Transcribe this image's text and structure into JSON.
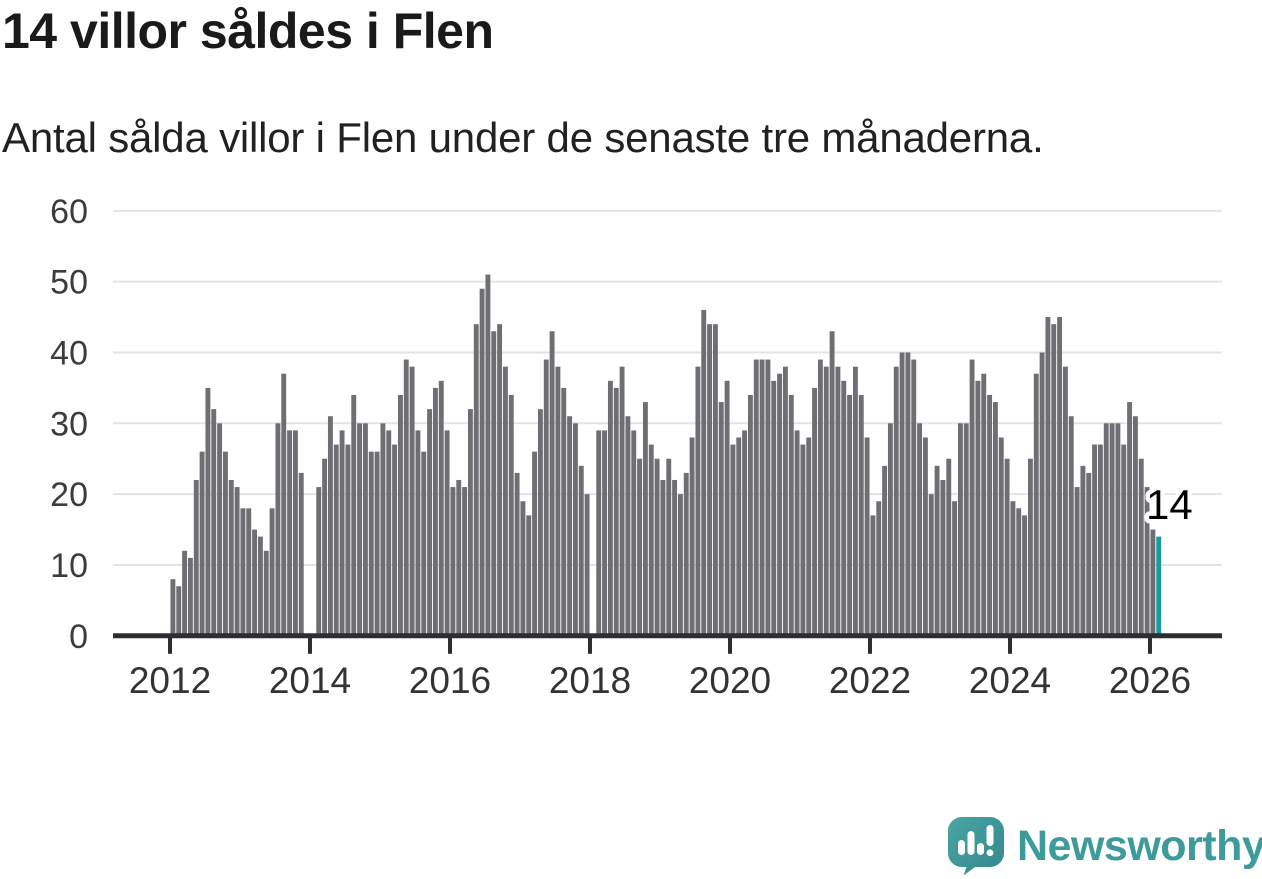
{
  "header": {
    "title": "14 villor såldes i Flen",
    "subtitle": "Antal sålda villor i Flen under de senaste tre månaderna."
  },
  "chart_data": {
    "type": "bar",
    "title": "14 villor såldes i Flen",
    "subtitle": "Antal sålda villor i Flen under de senaste tre månaderna.",
    "x_start": "2012-01",
    "frequency": "monthly",
    "ylim": [
      0,
      60
    ],
    "yticks": [
      0,
      10,
      20,
      30,
      40,
      50,
      60
    ],
    "xticks": [
      "2012",
      "2014",
      "2016",
      "2018",
      "2020",
      "2022",
      "2024",
      "2026"
    ],
    "grid": "horizontal",
    "legend": "none",
    "bar_color": "#6F6E73",
    "highlight_color": "#1A999F",
    "annotation": {
      "label": "14",
      "target": "last-bar"
    },
    "values_by_year": [
      {
        "year": 2012,
        "values": [
          8,
          7,
          12,
          11,
          22,
          26,
          35,
          32,
          30,
          26,
          22,
          21
        ]
      },
      {
        "year": 2013,
        "values": [
          18,
          18,
          15,
          14,
          12,
          18,
          30,
          37,
          29,
          29,
          23,
          null
        ]
      },
      {
        "year": 2014,
        "values": [
          null,
          21,
          25,
          31,
          27,
          29,
          27,
          34,
          30,
          30,
          26,
          26
        ]
      },
      {
        "year": 2015,
        "values": [
          30,
          29,
          27,
          34,
          39,
          38,
          29,
          26,
          32,
          35,
          36,
          29
        ]
      },
      {
        "year": 2016,
        "values": [
          21,
          22,
          21,
          32,
          44,
          49,
          51,
          43,
          44,
          38,
          34,
          23
        ]
      },
      {
        "year": 2017,
        "values": [
          19,
          17,
          26,
          32,
          39,
          43,
          38,
          35,
          31,
          30,
          24,
          20
        ]
      },
      {
        "year": 2018,
        "values": [
          null,
          29,
          29,
          36,
          35,
          38,
          31,
          29,
          25,
          33,
          27,
          25
        ]
      },
      {
        "year": 2019,
        "values": [
          22,
          25,
          22,
          20,
          23,
          28,
          38,
          46,
          44,
          44,
          33,
          36
        ]
      },
      {
        "year": 2020,
        "values": [
          27,
          28,
          29,
          34,
          39,
          39,
          39,
          36,
          37,
          38,
          34,
          29
        ]
      },
      {
        "year": 2021,
        "values": [
          27,
          28,
          35,
          39,
          38,
          43,
          38,
          36,
          34,
          38,
          34,
          28
        ]
      },
      {
        "year": 2022,
        "values": [
          17,
          19,
          24,
          30,
          38,
          40,
          40,
          39,
          30,
          28,
          20,
          24
        ]
      },
      {
        "year": 2023,
        "values": [
          22,
          25,
          19,
          30,
          30,
          39,
          36,
          37,
          34,
          33,
          28,
          25
        ]
      },
      {
        "year": 2024,
        "values": [
          19,
          18,
          17,
          25,
          37,
          40,
          45,
          44,
          45,
          38,
          31,
          21
        ]
      },
      {
        "year": 2025,
        "values": [
          24,
          23,
          27,
          27,
          30,
          30,
          30,
          27,
          33,
          31,
          25,
          21
        ]
      },
      {
        "year": 2026,
        "values": [
          15,
          14
        ]
      }
    ]
  },
  "footer": {
    "logo_text": "Newsworthy",
    "logo_color": "#3F9B9B",
    "logo_icon": "speech-bubble-bar-chart-exclamation"
  }
}
